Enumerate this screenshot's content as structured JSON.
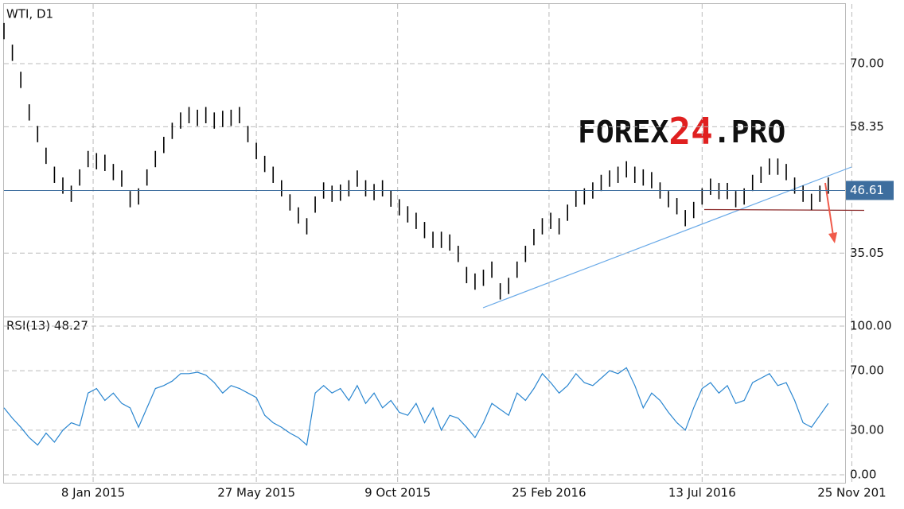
{
  "chart_data": [
    {
      "type": "ohlc",
      "title": "WTI, D1",
      "watermark": [
        "FOREX",
        "24",
        ".PRO"
      ],
      "last_price": 46.61,
      "color": "#000000",
      "last_color": "#3e6e9e",
      "xlim": [
        0,
        500
      ],
      "ylim": [
        23.5,
        81
      ],
      "yticks": [
        35.05,
        58.35,
        {
          "value": 70,
          "label": "70.00"
        }
      ],
      "x": [
        0,
        5,
        10,
        15,
        20,
        25,
        30,
        35,
        40,
        45,
        50,
        55,
        60,
        65,
        70,
        75,
        80,
        85,
        90,
        95,
        100,
        105,
        110,
        115,
        120,
        125,
        130,
        135,
        140,
        145,
        150,
        155,
        160,
        165,
        170,
        175,
        180,
        185,
        190,
        195,
        200,
        205,
        210,
        215,
        220,
        225,
        230,
        235,
        240,
        245,
        250,
        255,
        260,
        265,
        270,
        275,
        280,
        285,
        290,
        295,
        300,
        305,
        310,
        315,
        320,
        325,
        330,
        335,
        340,
        345,
        350,
        355,
        360,
        365,
        370,
        375,
        380,
        385,
        390,
        395,
        400,
        405,
        410,
        415,
        420,
        425,
        430,
        435,
        440,
        445,
        450,
        455,
        460,
        465,
        470,
        475,
        480,
        485,
        490
      ],
      "high": [
        77.5,
        73.5,
        68.5,
        62.5,
        58.5,
        54.5,
        51,
        49,
        47.5,
        50.5,
        53.9,
        53.5,
        53.2,
        51.5,
        50.3,
        46.5,
        47,
        50.5,
        53.9,
        56.5,
        59.1,
        61,
        62,
        61.5,
        62,
        61,
        61.3,
        61.5,
        62,
        58.5,
        55.4,
        53,
        51,
        48.5,
        45.9,
        43.5,
        41.5,
        45.5,
        48.1,
        47.5,
        47.7,
        48.5,
        50.3,
        48.5,
        47.8,
        48.5,
        46.6,
        45,
        43.7,
        42.5,
        40.8,
        39,
        39,
        38.5,
        36.4,
        32.5,
        31.3,
        32,
        33.5,
        29.5,
        30.5,
        33.5,
        36.4,
        39.5,
        41.5,
        42.5,
        41.5,
        44,
        46.6,
        47,
        48.1,
        49.5,
        50.3,
        51,
        52,
        51,
        50.5,
        50,
        48.1,
        46.5,
        45.2,
        43,
        44.5,
        47,
        48.8,
        48,
        48,
        46.5,
        47,
        49.5,
        51,
        52.5,
        52.5,
        51.5,
        49,
        47.5,
        46,
        47.5,
        49
      ],
      "low": [
        74.5,
        70.5,
        65.5,
        59.5,
        55.5,
        51.5,
        48,
        46,
        44.5,
        47.5,
        50.9,
        50.5,
        50.2,
        48.5,
        47.3,
        43.5,
        44,
        47.5,
        50.9,
        53.5,
        56.1,
        58,
        59,
        58.5,
        59,
        58,
        58.3,
        58.5,
        59,
        55.5,
        52.4,
        50,
        48,
        45.5,
        42.9,
        40.5,
        38.5,
        42.5,
        45.1,
        44.5,
        44.7,
        45.5,
        47.3,
        45.5,
        44.8,
        45.5,
        43.6,
        42,
        40.7,
        39.5,
        37.8,
        36,
        36,
        35.5,
        33.4,
        29.5,
        28.3,
        29,
        30.5,
        26.5,
        27.5,
        30.5,
        33.4,
        36.5,
        38.5,
        39.5,
        38.5,
        41,
        43.6,
        44,
        45.1,
        46.5,
        47.3,
        48,
        49,
        48,
        47.5,
        47,
        45.1,
        43.5,
        42.2,
        40,
        41.5,
        44,
        45.8,
        45,
        45,
        43.5,
        44,
        46.5,
        48,
        49.5,
        49.5,
        48.5,
        46,
        44.5,
        43,
        44.5,
        46
      ]
    },
    {
      "type": "line",
      "title": "RSI(13) 48.27",
      "color": "#2a86d0",
      "xlim": [
        0,
        500
      ],
      "ylim": [
        -5.35,
        105.35
      ],
      "yticks": [
        {
          "value": 0,
          "label": "0.00"
        },
        {
          "value": 30,
          "label": "30.00"
        },
        {
          "value": 70,
          "label": "70.00"
        },
        {
          "value": 100,
          "label": "100.00"
        }
      ],
      "xticks": [
        {
          "value": 53,
          "label": "8 Jan 2015"
        },
        {
          "value": 150,
          "label": "27 May 2015"
        },
        {
          "value": 234,
          "label": "9 Oct 2015"
        },
        {
          "value": 324,
          "label": "25 Feb 2016"
        },
        {
          "value": 415,
          "label": "13 Jul 2016"
        },
        {
          "value": 504,
          "label": "25 Nov 201"
        }
      ],
      "x": [
        0,
        5,
        10,
        15,
        20,
        25,
        30,
        35,
        40,
        45,
        50,
        55,
        60,
        65,
        70,
        75,
        80,
        85,
        90,
        95,
        100,
        105,
        110,
        115,
        120,
        125,
        130,
        135,
        140,
        145,
        150,
        155,
        160,
        165,
        170,
        175,
        180,
        185,
        190,
        195,
        200,
        205,
        210,
        215,
        220,
        225,
        230,
        235,
        240,
        245,
        250,
        255,
        260,
        265,
        270,
        275,
        280,
        285,
        290,
        295,
        300,
        305,
        310,
        315,
        320,
        325,
        330,
        335,
        340,
        345,
        350,
        355,
        360,
        365,
        370,
        375,
        380,
        385,
        390,
        395,
        400,
        405,
        410,
        415,
        420,
        425,
        430,
        435,
        440,
        445,
        450,
        455,
        460,
        465,
        470,
        475,
        480,
        485,
        490
      ],
      "values": [
        45,
        38,
        32,
        25,
        20,
        28,
        22,
        30,
        35,
        33,
        55,
        58,
        50,
        55,
        48,
        45,
        32,
        45,
        58,
        60,
        63,
        68,
        68,
        69,
        67,
        62,
        55,
        60,
        58,
        55,
        52,
        40,
        35,
        32,
        28,
        25,
        20,
        55,
        60,
        55,
        58,
        50,
        60,
        48,
        55,
        45,
        50,
        42,
        40,
        48,
        35,
        45,
        30,
        40,
        38,
        32,
        25,
        35,
        48,
        44,
        40,
        55,
        50,
        58,
        68,
        62,
        55,
        60,
        68,
        62,
        60,
        65,
        70,
        68,
        72,
        60,
        45,
        55,
        50,
        42,
        35,
        30,
        45,
        58,
        62,
        55,
        60,
        48,
        50,
        62,
        65,
        68,
        60,
        62,
        50,
        35,
        32,
        40,
        48
      ]
    }
  ]
}
